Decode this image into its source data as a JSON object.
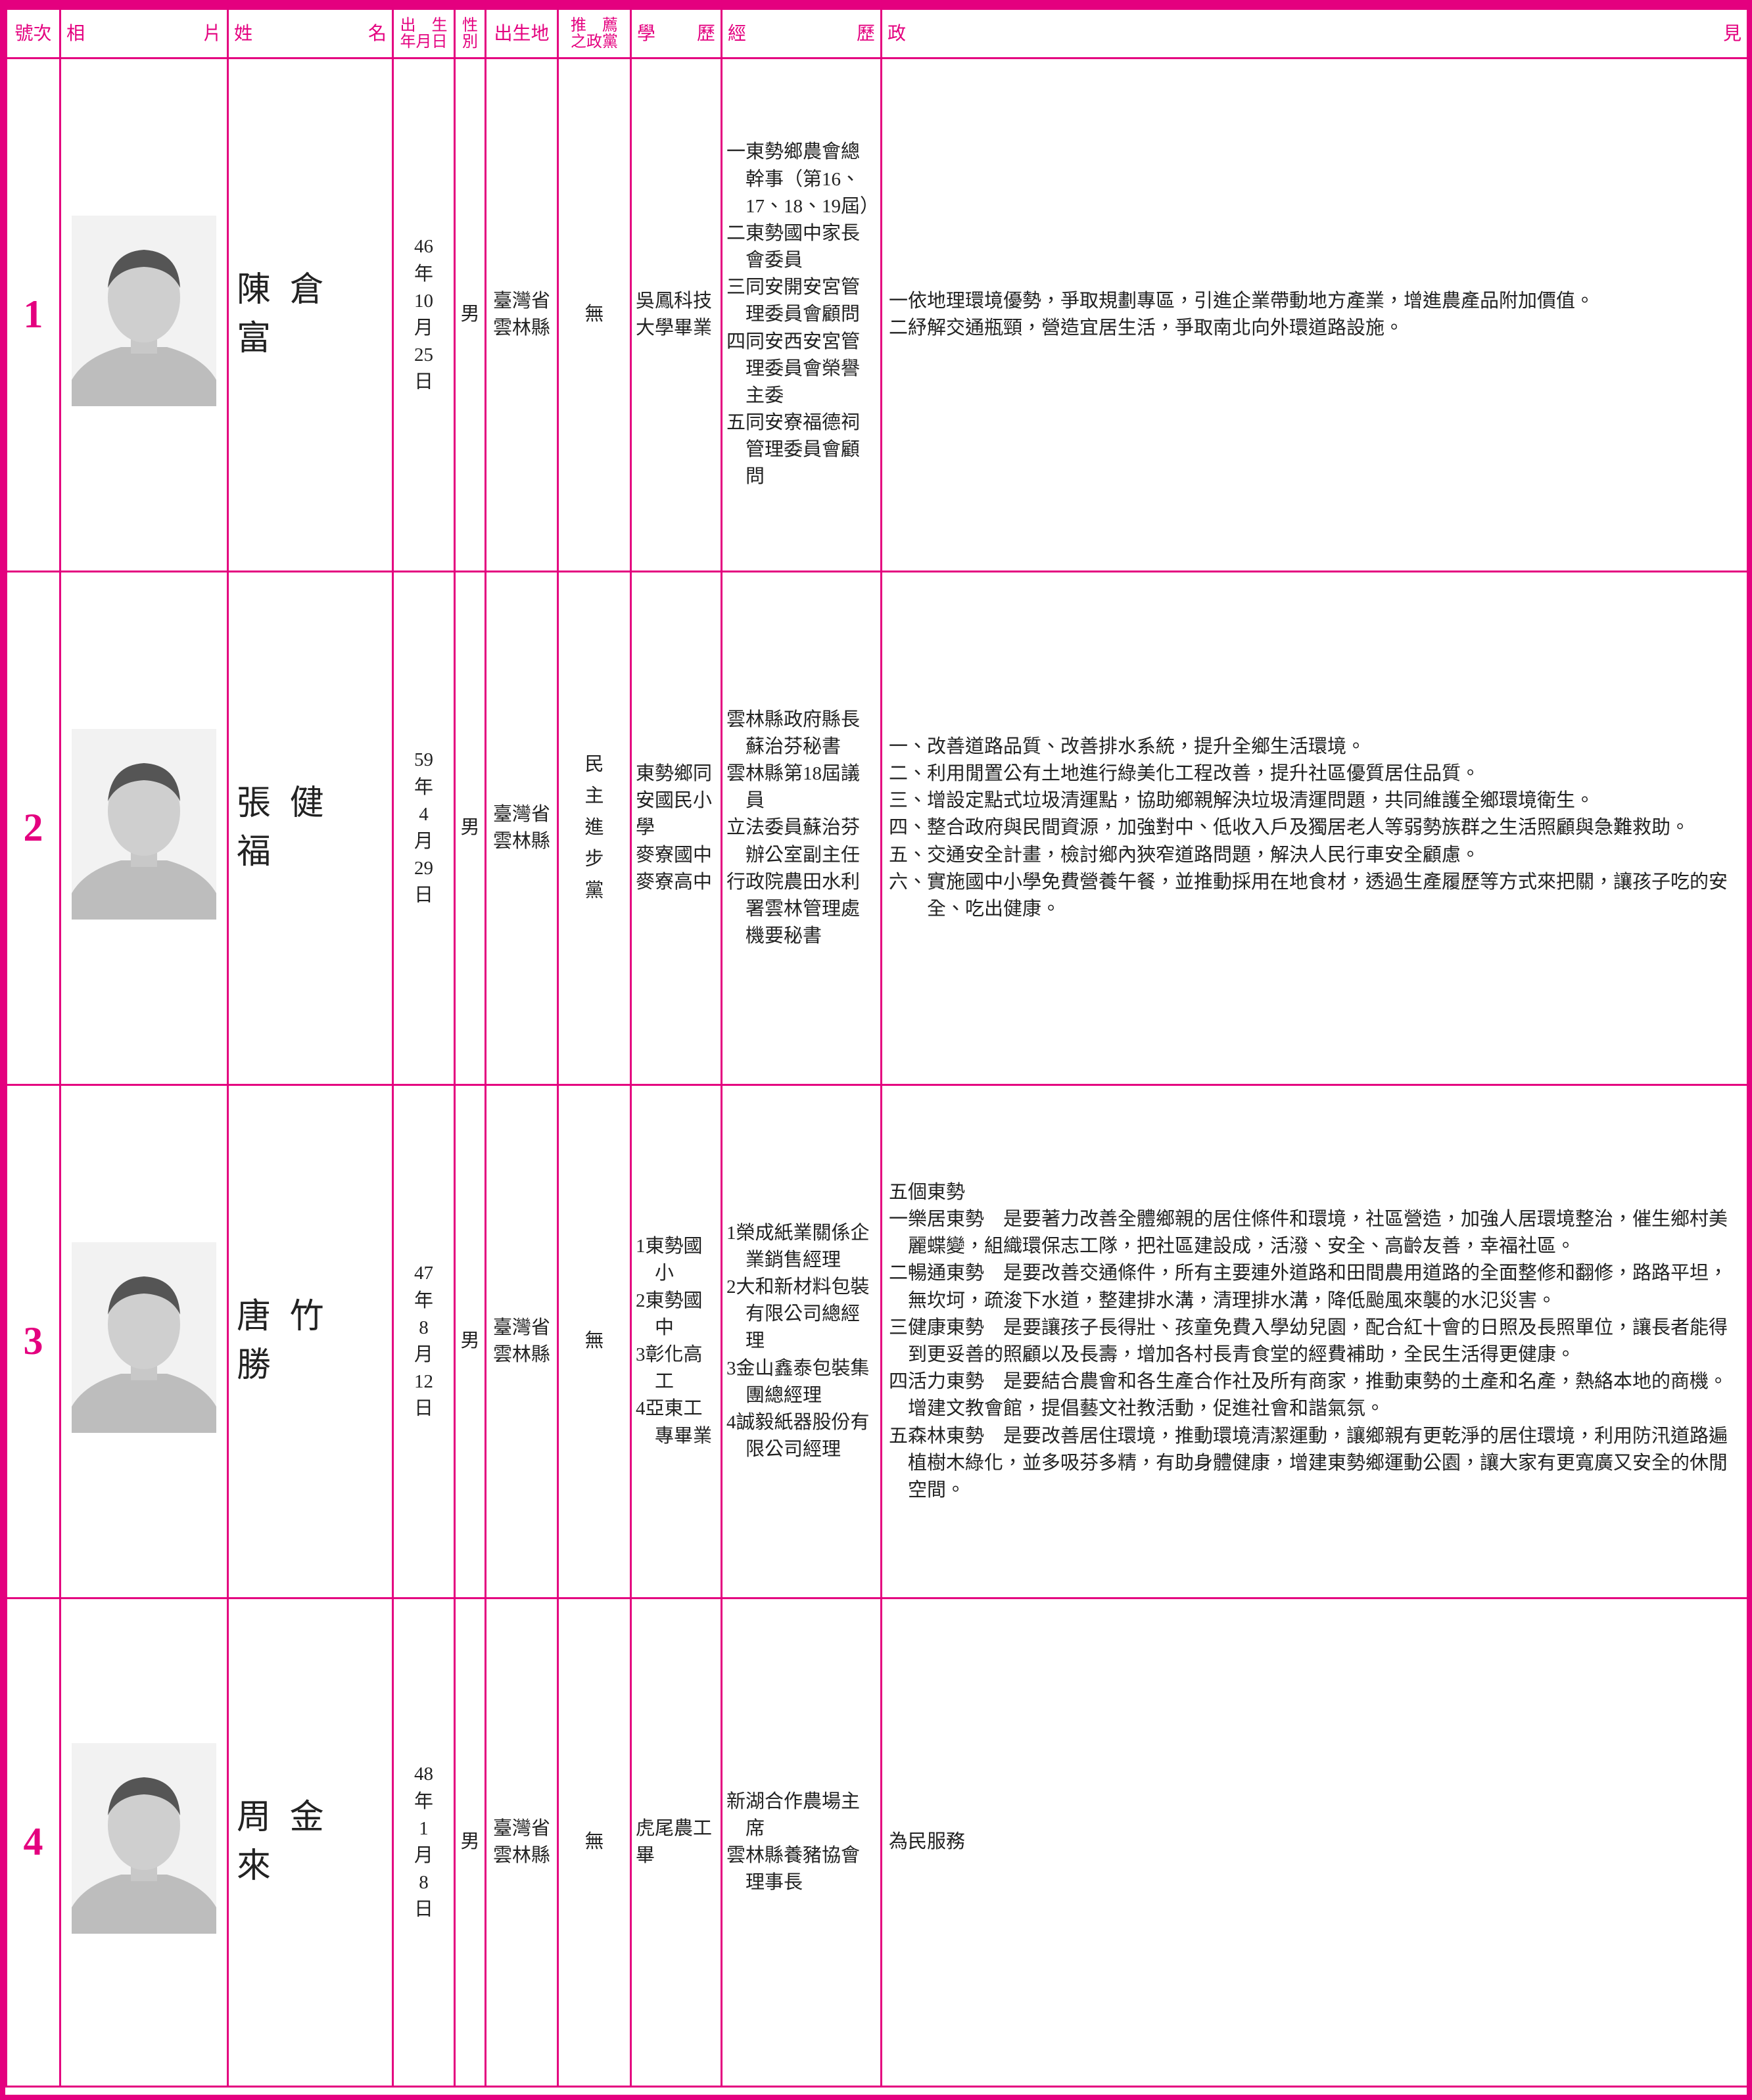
{
  "header": {
    "columns": [
      [
        "號次"
      ],
      [
        "相　　片"
      ],
      [
        "姓　　名"
      ],
      [
        "出　生",
        "年月日"
      ],
      [
        "性",
        "別"
      ],
      [
        "出生地"
      ],
      [
        "推　薦",
        "之政黨"
      ],
      [
        "學　　歷"
      ],
      [
        "經　　歷"
      ],
      [
        "政　　見"
      ]
    ]
  },
  "candidates": [
    {
      "number": "1",
      "name": "陳倉富",
      "birth": [
        "46",
        "年",
        "10",
        "月",
        "25",
        "日"
      ],
      "gender": "男",
      "birthplace": [
        "臺灣省",
        "雲林縣"
      ],
      "party": "無",
      "education": [
        "吳鳳科技大學畢業"
      ],
      "experience": [
        "一東勢鄉農會總幹事（第16、17、18、19屆）",
        "二東勢國中家長會委員",
        "三同安開安宮管理委員會顧問",
        "四同安西安宮管理委員會榮譽主委",
        "五同安寮福德祠管理委員會顧問"
      ],
      "platform": {
        "items": [
          "一依地理環境優勢，爭取規劃專區，引進企業帶動地方產業，增進農產品附加價值。",
          "二紓解交通瓶頸，營造宜居生活，爭取南北向外環道路設施。"
        ]
      }
    },
    {
      "number": "2",
      "name": "張健福",
      "birth": [
        "59",
        "年",
        "4",
        "月",
        "29",
        "日"
      ],
      "gender": "男",
      "birthplace": [
        "臺灣省",
        "雲林縣"
      ],
      "party": "民主進步黨",
      "education": [
        "東勢鄉同安國民小學",
        "麥寮國中",
        "麥寮高中"
      ],
      "experience": [
        "雲林縣政府縣長蘇治芬秘書",
        "雲林縣第18屆議員",
        "立法委員蘇治芬辦公室副主任",
        "行政院農田水利署雲林管理處機要秘書"
      ],
      "platform": {
        "items": [
          "一、改善道路品質、改善排水系統，提升全鄉生活環境。",
          "二、利用閒置公有土地進行綠美化工程改善，提升社區優質居住品質。",
          "三、增設定點式垃圾清運點，協助鄉親解決垃圾清運問題，共同維護全鄉環境衛生。",
          "四、整合政府與民間資源，加強對中、低收入戶及獨居老人等弱勢族群之生活照顧與急難救助。",
          "五、交通安全計畫，檢討鄉內狹窄道路問題，解決人民行車安全顧慮。",
          "六、實施國中小學免費營養午餐，並推動採用在地食材，透過生產履歷等方式來把關，讓孩子吃的安全、吃出健康。"
        ]
      }
    },
    {
      "number": "3",
      "name": "唐竹勝",
      "birth": [
        "47",
        "年",
        "8",
        "月",
        "12",
        "日"
      ],
      "gender": "男",
      "birthplace": [
        "臺灣省",
        "雲林縣"
      ],
      "party": "無",
      "education": [
        "1東勢國小",
        "2東勢國中",
        "3彰化高工",
        "4亞東工專畢業"
      ],
      "experience": [
        "1榮成紙業關係企業銷售經理",
        "2大和新材料包裝有限公司總經理",
        "3金山鑫泰包裝集團總經理",
        "4誠毅紙器股份有限公司經理"
      ],
      "platform": {
        "heading": "五個東勢",
        "items": [
          "一樂居東勢　是要著力改善全體鄉親的居住條件和環境，社區營造，加強人居環境整治，催生鄉村美麗蝶變，組織環保志工隊，把社區建設成，活潑、安全、高齡友善，幸福社區。",
          "二暢通東勢　是要改善交通條件，所有主要連外道路和田間農用道路的全面整修和翻修，路路平坦，無坎坷，疏浚下水道，整建排水溝，清理排水溝，降低颱風來襲的水氾災害。",
          "三健康東勢　是要讓孩子長得壯、孩童免費入學幼兒園，配合紅十會的日照及長照單位，讓長者能得到更妥善的照顧以及長壽，增加各村長青食堂的經費補助，全民生活得更健康。",
          "四活力東勢　是要結合農會和各生產合作社及所有商家，推動東勢的土產和名產，熱絡本地的商機。增建文教會館，提倡藝文社教活動，促進社會和諧氣氛。",
          "五森林東勢　是要改善居住環境，推動環境清潔運動，讓鄉親有更乾淨的居住環境，利用防汛道路遍植樹木綠化，並多吸芬多精，有助身體健康，增建東勢鄉運動公園，讓大家有更寬廣又安全的休閒空間。"
        ]
      }
    },
    {
      "number": "4",
      "name": "周金來",
      "birth": [
        "48",
        "年",
        "1",
        "月",
        "8",
        "日"
      ],
      "gender": "男",
      "birthplace": [
        "臺灣省",
        "雲林縣"
      ],
      "party": "無",
      "education": [
        "虎尾農工畢"
      ],
      "experience": [
        "新湖合作農場主席",
        "雲林縣養豬協會理事長"
      ],
      "platform": {
        "items": [
          "為民服務"
        ]
      }
    }
  ]
}
